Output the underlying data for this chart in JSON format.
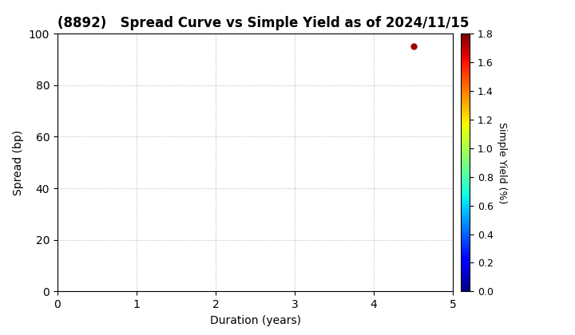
{
  "title": "(8892)   Spread Curve vs Simple Yield as of 2024/11/15",
  "xlabel": "Duration (years)",
  "ylabel": "Spread (bp)",
  "colorbar_label": "Simple Yield (%)",
  "xlim": [
    0,
    5
  ],
  "ylim": [
    0,
    100
  ],
  "xticks": [
    0,
    1,
    2,
    3,
    4,
    5
  ],
  "yticks": [
    0,
    20,
    40,
    60,
    80,
    100
  ],
  "point_x": 4.5,
  "point_y": 95,
  "point_color_value": 1.75,
  "colormap": "jet",
  "clim": [
    0.0,
    1.8
  ],
  "colorbar_ticks": [
    0.0,
    0.2,
    0.4,
    0.6,
    0.8,
    1.0,
    1.2,
    1.4,
    1.6,
    1.8
  ],
  "background_color": "#ffffff",
  "grid_color": "#bbbbbb",
  "title_fontsize": 12,
  "axis_fontsize": 10,
  "tick_fontsize": 10,
  "colorbar_fontsize": 9
}
